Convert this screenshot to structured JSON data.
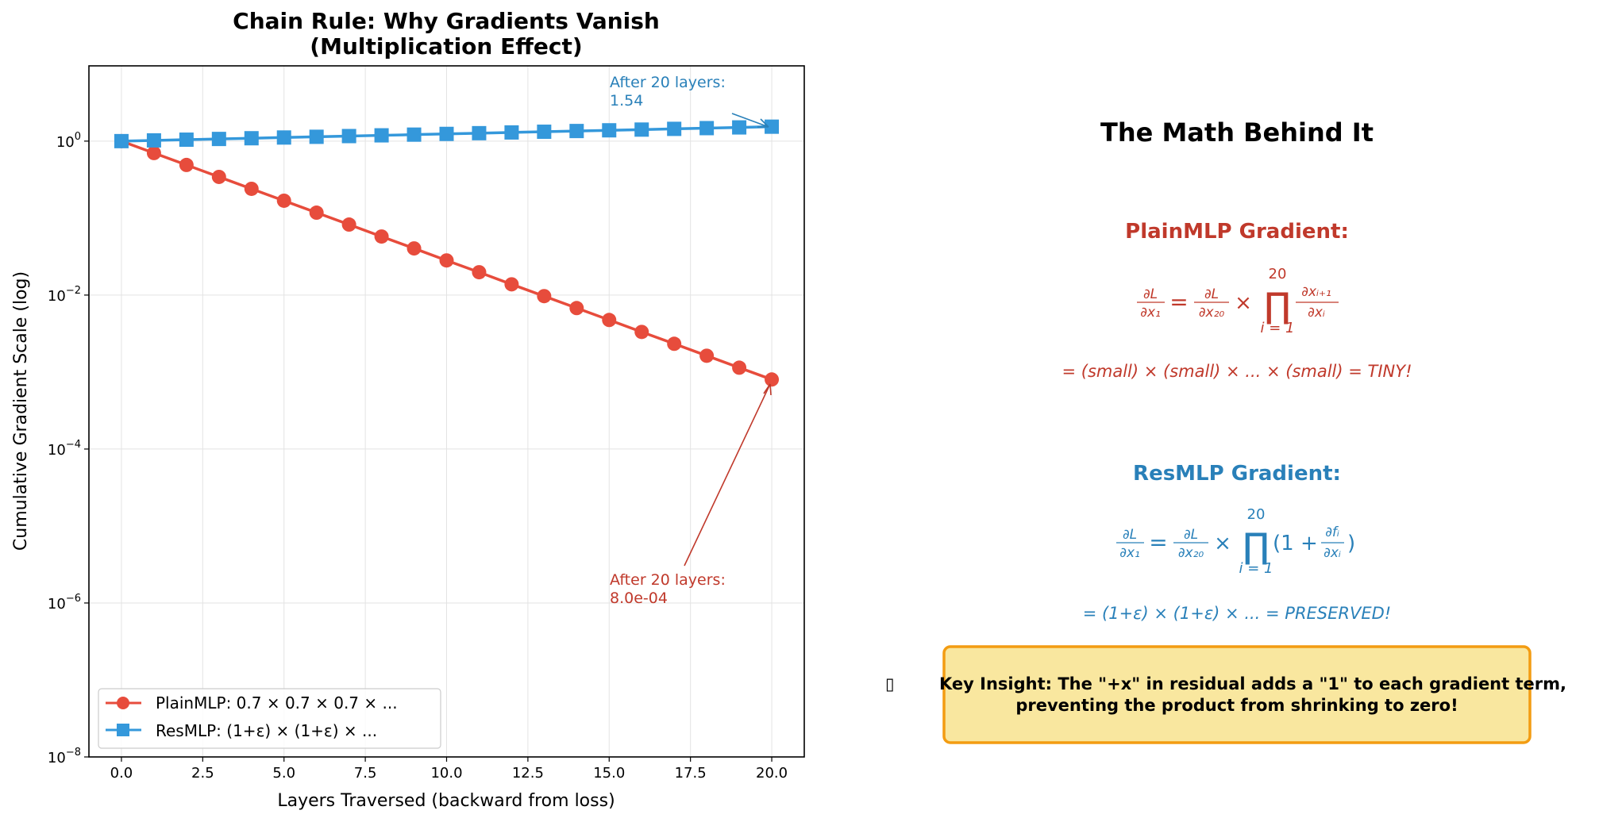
{
  "chart_data": {
    "type": "line",
    "title": "Chain Rule: Why Gradients Vanish",
    "subtitle": "(Multiplication Effect)",
    "xlabel": "Layers Traversed (backward from loss)",
    "ylabel": "Cumulative Gradient Scale (log)",
    "yscale": "log",
    "xlim": [
      -1,
      21
    ],
    "ylim": [
      1e-08,
      9.5
    ],
    "xticks": [
      "0.0",
      "2.5",
      "5.0",
      "7.5",
      "10.0",
      "12.5",
      "15.0",
      "17.5",
      "20.0"
    ],
    "xtick_values": [
      0,
      2.5,
      5,
      7.5,
      10,
      12.5,
      15,
      17.5,
      20
    ],
    "yticks": [
      {
        "base": "10",
        "exp": "0",
        "value": 1
      },
      {
        "base": "10",
        "exp": "−2",
        "value": 0.01
      },
      {
        "base": "10",
        "exp": "−4",
        "value": 0.0001
      },
      {
        "base": "10",
        "exp": "−6",
        "value": 1e-06
      },
      {
        "base": "10",
        "exp": "−8",
        "value": 1e-08
      }
    ],
    "grid": true,
    "legend_position": "lower-left",
    "x": [
      0,
      1,
      2,
      3,
      4,
      5,
      6,
      7,
      8,
      9,
      10,
      11,
      12,
      13,
      14,
      15,
      16,
      17,
      18,
      19,
      20
    ],
    "series": [
      {
        "name": "PlainMLP: 0.7 × 0.7 × 0.7 × ...",
        "color": "#e74c3c",
        "marker": "circle",
        "values": [
          1,
          0.7,
          0.49,
          0.343,
          0.2401,
          0.1681,
          0.1176,
          0.0824,
          0.0576,
          0.0404,
          0.0282,
          0.0198,
          0.0138,
          0.00969,
          0.00678,
          0.00475,
          0.00332,
          0.00233,
          0.00163,
          0.00114,
          0.0008
        ]
      },
      {
        "name": "ResMLP: (1+ε) × (1+ε) × ...",
        "color": "#3498db",
        "marker": "square",
        "values": [
          1,
          1.022,
          1.044,
          1.067,
          1.09,
          1.114,
          1.138,
          1.163,
          1.189,
          1.214,
          1.241,
          1.268,
          1.296,
          1.324,
          1.353,
          1.382,
          1.412,
          1.443,
          1.475,
          1.507,
          1.54
        ]
      }
    ],
    "annotations": [
      {
        "line1": "After 20 layers:",
        "line2": "1.54",
        "color": "#2980b9",
        "x": 20,
        "y": 1.54
      },
      {
        "line1": "After 20 layers:",
        "line2": "8.0e-04",
        "color": "#c0392b",
        "x": 20,
        "y": 0.0008
      }
    ]
  },
  "math_panel": {
    "title": "The Math Behind It",
    "plain": {
      "heading": "PlainMLP Gradient:",
      "color": "#c0392b",
      "lhs_num": "∂L",
      "lhs_den": "∂x₁",
      "eq": "=",
      "mid_num": "∂L",
      "mid_den": "∂x₂₀",
      "times": "×",
      "prod": "∏",
      "prod_top": "20",
      "prod_bottom": "i = 1",
      "term_num": "∂xᵢ₊₁",
      "term_den": "∂xᵢ",
      "explanation": "= (small) × (small) × ... × (small) = TINY!"
    },
    "res": {
      "heading": "ResMLP Gradient:",
      "color": "#2980b9",
      "lhs_num": "∂L",
      "lhs_den": "∂x₁",
      "eq": "=",
      "mid_num": "∂L",
      "mid_den": "∂x₂₀",
      "times": "×",
      "prod": "∏",
      "prod_top": "20",
      "prod_bottom": "i = 1",
      "open": "(1 +",
      "term_num": "∂fᵢ",
      "term_den": "∂xᵢ",
      "close": ")",
      "explanation": "= (1+ε) × (1+ε) × ... = PRESERVED!"
    },
    "insight": {
      "icon": "lightbulb-icon",
      "glyph": "▯",
      "line1": "Key Insight: The \"+x\" in residual adds a \"1\" to each gradient term,",
      "line2": "preventing the product from shrinking to zero!",
      "fill": "#f9e79f",
      "border": "#f39c12"
    }
  }
}
